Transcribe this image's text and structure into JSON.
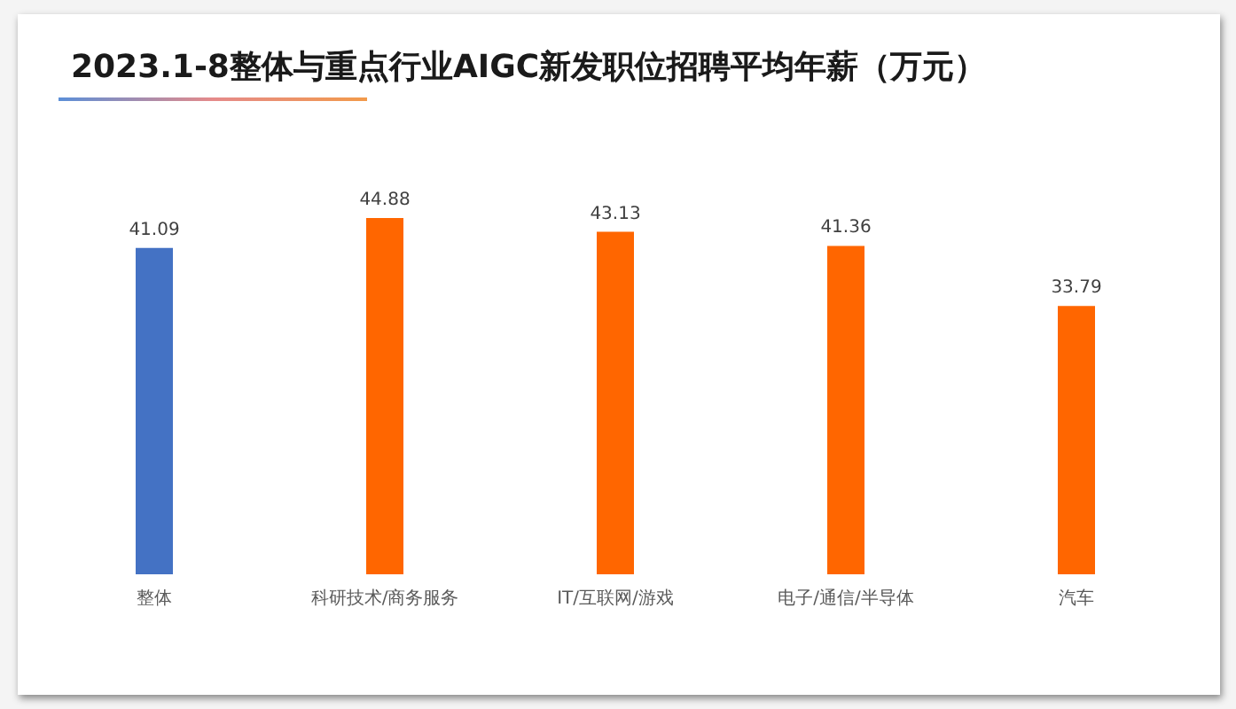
{
  "chart_data": {
    "type": "bar",
    "title": "2023.1-8整体与重点行业AIGC新发职位招聘平均年薪（万元）",
    "categories": [
      "整体",
      "科研技术/商务服务",
      "IT/互联网/游戏",
      "电子/通信/半导体",
      "汽车"
    ],
    "values": [
      41.09,
      44.88,
      43.13,
      41.36,
      33.79
    ],
    "colors": [
      "#4472c4",
      "#ff6600",
      "#ff6600",
      "#ff6600",
      "#ff6600"
    ],
    "data_labels": true
  }
}
